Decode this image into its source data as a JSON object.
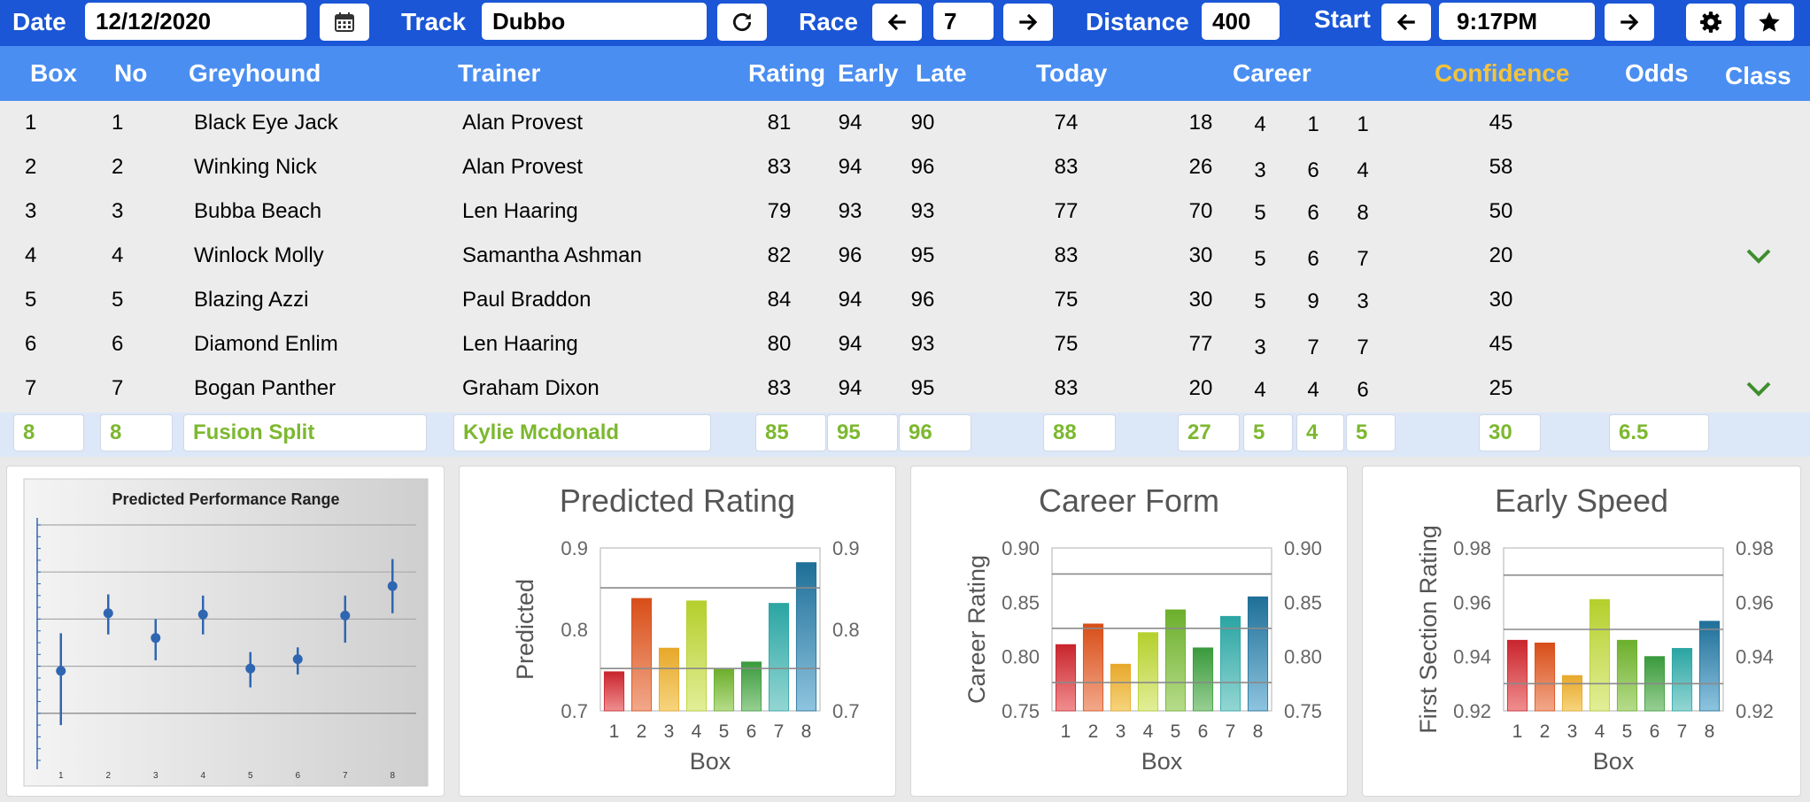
{
  "toolbar": {
    "date_label": "Date",
    "date_value": "12/12/2020",
    "track_label": "Track",
    "track_value": "Dubbo",
    "race_label": "Race",
    "race_value": "7",
    "distance_label": "Distance",
    "distance_value": "400",
    "start_label": "Start",
    "start_value": "9:17PM",
    "icons": [
      "calendar-icon",
      "refresh-icon",
      "arrow-left-icon",
      "arrow-right-icon",
      "gear-icon",
      "star-icon"
    ]
  },
  "headers": {
    "box": "Box",
    "no": "No",
    "greyhound": "Greyhound",
    "trainer": "Trainer",
    "rating": "Rating",
    "early": "Early",
    "late": "Late",
    "today": "Today",
    "career": "Career",
    "confidence": "Confidence",
    "odds": "Odds",
    "class": "Class"
  },
  "colors": {
    "toolbar": "#1a56d6",
    "header": "#4a8ef1",
    "confidence_header": "#f5c33b",
    "entry_text": "#7cb82f",
    "checkmark": "#3e8e2e"
  },
  "rows": [
    {
      "box": "1",
      "no": "1",
      "greyhound": "Black Eye Jack",
      "trainer": "Alan Provest",
      "rating": "81",
      "early": "94",
      "late": "90",
      "today": "74",
      "career": [
        "18",
        "4",
        "1",
        "1"
      ],
      "confidence": "45",
      "odds": "",
      "class_check": false
    },
    {
      "box": "2",
      "no": "2",
      "greyhound": "Winking Nick",
      "trainer": "Alan Provest",
      "rating": "83",
      "early": "94",
      "late": "96",
      "today": "83",
      "career": [
        "26",
        "3",
        "6",
        "4"
      ],
      "confidence": "58",
      "odds": "",
      "class_check": false
    },
    {
      "box": "3",
      "no": "3",
      "greyhound": "Bubba Beach",
      "trainer": "Len Haaring",
      "rating": "79",
      "early": "93",
      "late": "93",
      "today": "77",
      "career": [
        "70",
        "5",
        "6",
        "8"
      ],
      "confidence": "50",
      "odds": "",
      "class_check": false
    },
    {
      "box": "4",
      "no": "4",
      "greyhound": "Winlock Molly",
      "trainer": "Samantha Ashman",
      "rating": "82",
      "early": "96",
      "late": "95",
      "today": "83",
      "career": [
        "30",
        "5",
        "6",
        "7"
      ],
      "confidence": "20",
      "odds": "",
      "class_check": true
    },
    {
      "box": "5",
      "no": "5",
      "greyhound": "Blazing Azzi",
      "trainer": "Paul Braddon",
      "rating": "84",
      "early": "94",
      "late": "96",
      "today": "75",
      "career": [
        "30",
        "5",
        "9",
        "3"
      ],
      "confidence": "30",
      "odds": "",
      "class_check": false
    },
    {
      "box": "6",
      "no": "6",
      "greyhound": "Diamond Enlim",
      "trainer": "Len Haaring",
      "rating": "80",
      "early": "94",
      "late": "93",
      "today": "75",
      "career": [
        "77",
        "3",
        "7",
        "7"
      ],
      "confidence": "45",
      "odds": "",
      "class_check": false
    },
    {
      "box": "7",
      "no": "7",
      "greyhound": "Bogan Panther",
      "trainer": "Graham Dixon",
      "rating": "83",
      "early": "94",
      "late": "95",
      "today": "83",
      "career": [
        "20",
        "4",
        "4",
        "6"
      ],
      "confidence": "25",
      "odds": "",
      "class_check": true
    }
  ],
  "entry": {
    "box": "8",
    "no": "8",
    "greyhound": "Fusion Split",
    "trainer": "Kylie Mcdonald",
    "rating": "85",
    "early": "95",
    "late": "96",
    "today": "88",
    "career": [
      "27",
      "5",
      "4",
      "5"
    ],
    "confidence": "30",
    "odds": "6.5"
  },
  "chart_data": [
    {
      "type": "scatter",
      "title": "Predicted Performance Range",
      "categories": [
        "1",
        "2",
        "3",
        "4",
        "5",
        "6",
        "7",
        "8"
      ],
      "center": [
        0.38,
        0.625,
        0.52,
        0.62,
        0.39,
        0.43,
        0.615,
        0.74
      ],
      "low": [
        0.15,
        0.535,
        0.425,
        0.535,
        0.31,
        0.365,
        0.5,
        0.625
      ],
      "high": [
        0.54,
        0.705,
        0.6,
        0.7,
        0.46,
        0.48,
        0.7,
        0.855
      ],
      "ylim": [
        0,
        1
      ],
      "grid": true,
      "legend": "none"
    },
    {
      "type": "bar",
      "title": "Predicted Rating",
      "xlabel": "Box",
      "ylabel": "Predicted",
      "categories": [
        "1",
        "2",
        "3",
        "4",
        "5",
        "6",
        "7",
        "8"
      ],
      "values": [
        0.748,
        0.838,
        0.777,
        0.835,
        0.751,
        0.76,
        0.832,
        0.882
      ],
      "ylim": [
        0.7,
        0.9
      ],
      "yticks": [
        "0.7",
        "0.8",
        "0.9"
      ],
      "reference_lines": [
        0.752,
        0.851
      ]
    },
    {
      "type": "bar",
      "title": "Career Form",
      "xlabel": "Box",
      "ylabel": "Career Rating",
      "categories": [
        "1",
        "2",
        "3",
        "4",
        "5",
        "6",
        "7",
        "8"
      ],
      "values": [
        0.811,
        0.83,
        0.793,
        0.822,
        0.843,
        0.808,
        0.837,
        0.855
      ],
      "ylim": [
        0.75,
        0.9
      ],
      "yticks": [
        "0.75",
        "0.80",
        "0.85",
        "0.90"
      ],
      "reference_lines": [
        0.776,
        0.826,
        0.876
      ]
    },
    {
      "type": "bar",
      "title": "Early Speed",
      "xlabel": "Box",
      "ylabel": "First Section Rating",
      "categories": [
        "1",
        "2",
        "3",
        "4",
        "5",
        "6",
        "7",
        "8"
      ],
      "values": [
        0.946,
        0.945,
        0.933,
        0.961,
        0.946,
        0.94,
        0.943,
        0.953
      ],
      "ylim": [
        0.92,
        0.98
      ],
      "yticks": [
        "0.92",
        "0.94",
        "0.96",
        "0.98"
      ],
      "reference_lines": [
        0.93,
        0.95,
        0.97
      ]
    }
  ]
}
